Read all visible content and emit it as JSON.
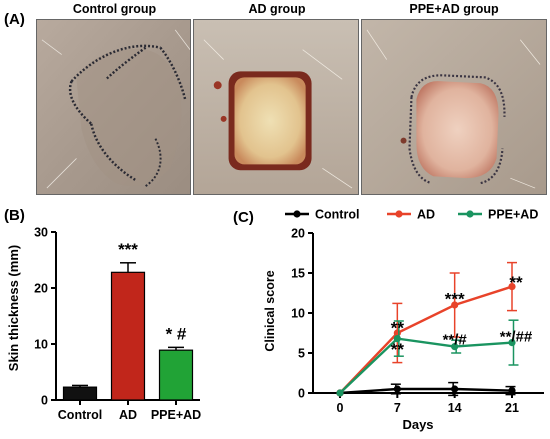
{
  "panels": {
    "a_label": "(A)",
    "b_label": "(B)",
    "c_label": "(C)"
  },
  "photos": [
    {
      "title": "Control group"
    },
    {
      "title": "AD group"
    },
    {
      "title": "PPE+AD group"
    }
  ],
  "colors": {
    "control": "#000000",
    "ad": "#e8432a",
    "ppe_ad": "#1a9460",
    "bar_control": "#111111",
    "bar_ad": "#c1261b",
    "bar_ppe_ad": "#21a336"
  },
  "chart_data": [
    {
      "type": "bar",
      "panel": "B",
      "categories": [
        "Control",
        "AD",
        "PPE+AD"
      ],
      "values": [
        2.3,
        22.8,
        8.9
      ],
      "errors": [
        0.3,
        1.7,
        0.5
      ],
      "significance": [
        "",
        "***",
        "* #"
      ],
      "ylabel": "Skin thickness (mm)",
      "xlabel": "",
      "ylim": [
        0,
        30
      ],
      "yticks": [
        0,
        10,
        20,
        30
      ],
      "colors": [
        "#111111",
        "#c1261b",
        "#21a336"
      ]
    },
    {
      "type": "line",
      "panel": "C",
      "x": [
        0,
        7,
        14,
        21
      ],
      "xlabel": "Days",
      "ylabel": "Clinical score",
      "ylim": [
        0,
        20
      ],
      "yticks": [
        0,
        5,
        10,
        15,
        20
      ],
      "xticks": [
        0,
        7,
        14,
        21
      ],
      "legend_position": "top",
      "series": [
        {
          "name": "Control",
          "values": [
            0,
            0.5,
            0.5,
            0.3
          ],
          "errors": [
            0,
            0.6,
            0.8,
            0.5
          ],
          "color": "#000000"
        },
        {
          "name": "AD",
          "values": [
            0,
            7.5,
            11,
            13.3
          ],
          "errors": [
            0,
            3.7,
            4,
            3
          ],
          "color": "#e8432a"
        },
        {
          "name": "PPE+AD",
          "values": [
            0,
            6.8,
            5.8,
            6.3
          ],
          "errors": [
            0,
            2.2,
            0.8,
            2.8
          ],
          "color": "#1a9460"
        }
      ],
      "annotations": [
        {
          "x": 7,
          "y": 8.2,
          "text": "**",
          "series": "AD"
        },
        {
          "x": 7,
          "y": 5.5,
          "text": "**",
          "series": "PPE+AD"
        },
        {
          "x": 14,
          "y": 11.8,
          "text": "***",
          "series": "AD"
        },
        {
          "x": 14,
          "y": 6.8,
          "text": "**/#",
          "series": "PPE+AD"
        },
        {
          "x": 21,
          "y": 13.9,
          "text": "**",
          "series": "AD"
        },
        {
          "x": 21,
          "y": 7.2,
          "text": "**/##",
          "series": "PPE+AD"
        }
      ]
    }
  ]
}
